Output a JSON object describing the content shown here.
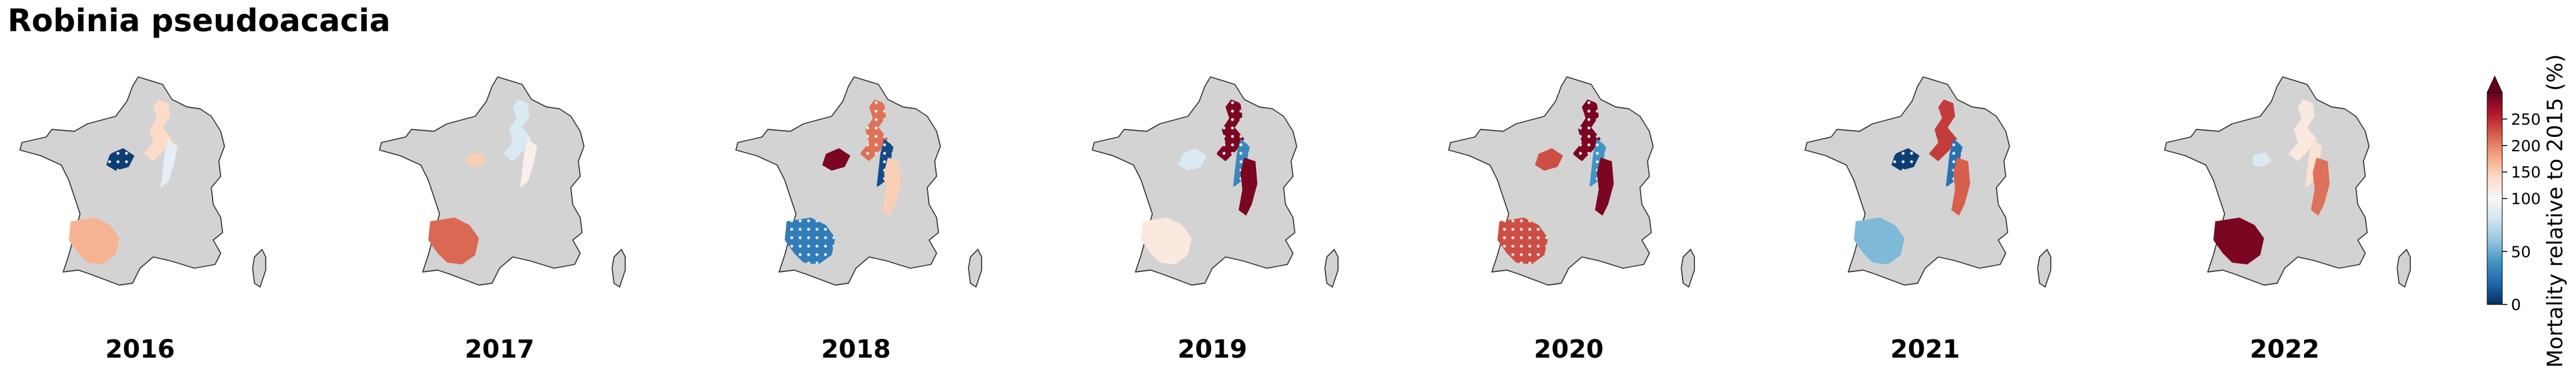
{
  "chart_data": {
    "type": "choropleth-map-small-multiples",
    "title": "Robinia pseudoacacia",
    "panels": [
      {
        "year": "2016",
        "regions": [
          {
            "id": "centre",
            "value": 5,
            "hatched": true
          },
          {
            "id": "northeast",
            "value": 140
          },
          {
            "id": "alps",
            "value": 90
          },
          {
            "id": "southwest",
            "value": 170
          }
        ]
      },
      {
        "year": "2017",
        "regions": [
          {
            "id": "centre-west",
            "value": 150
          },
          {
            "id": "northeast",
            "value": 85
          },
          {
            "id": "alps",
            "value": 110
          },
          {
            "id": "southwest",
            "value": 215
          }
        ]
      },
      {
        "year": "2018",
        "regions": [
          {
            "id": "centre",
            "value": 290
          },
          {
            "id": "northeast",
            "value": 210,
            "hatched": true
          },
          {
            "id": "alps",
            "value": 10,
            "hatched": true
          },
          {
            "id": "alps-south",
            "value": 150
          },
          {
            "id": "southwest",
            "value": 30,
            "hatched": true
          }
        ]
      },
      {
        "year": "2019",
        "regions": [
          {
            "id": "centre",
            "value": 85
          },
          {
            "id": "northeast",
            "value": 290,
            "hatched": true
          },
          {
            "id": "alps",
            "value": 35,
            "hatched": true
          },
          {
            "id": "alps-south",
            "value": 290
          },
          {
            "id": "southwest",
            "value": 120
          }
        ]
      },
      {
        "year": "2020",
        "regions": [
          {
            "id": "centre",
            "value": 230
          },
          {
            "id": "northeast",
            "value": 290,
            "hatched": true
          },
          {
            "id": "alps",
            "value": 40,
            "hatched": true
          },
          {
            "id": "alps-south",
            "value": 290
          },
          {
            "id": "southwest",
            "value": 230,
            "hatched": true
          }
        ]
      },
      {
        "year": "2021",
        "regions": [
          {
            "id": "centre",
            "value": 5,
            "hatched": true
          },
          {
            "id": "northeast",
            "value": 240
          },
          {
            "id": "alps",
            "value": 25,
            "hatched": true
          },
          {
            "id": "alps-south",
            "value": 220
          },
          {
            "id": "southwest",
            "value": 55
          }
        ]
      },
      {
        "year": "2022",
        "regions": [
          {
            "id": "centre-west",
            "value": 85
          },
          {
            "id": "northeast",
            "value": 120
          },
          {
            "id": "alps",
            "value": 130
          },
          {
            "id": "alps-south",
            "value": 210
          },
          {
            "id": "southwest",
            "value": 290
          }
        ]
      }
    ],
    "colorbar": {
      "label": "Mortality relative to 2015 (%)",
      "ticks": [
        0,
        50,
        100,
        150,
        200,
        250
      ],
      "min": 0,
      "max": 300,
      "center": 100,
      "extend": "max",
      "colormap": "RdBu_r",
      "stops": [
        "#053061",
        "#2166ac",
        "#4393c3",
        "#92c5de",
        "#d1e5f0",
        "#f7f7f7",
        "#fddbc7",
        "#f4a582",
        "#d6604d",
        "#b2182b",
        "#67001f"
      ]
    },
    "colors": {
      "background_land": "#d3d3d3",
      "outline": "#333333"
    }
  }
}
